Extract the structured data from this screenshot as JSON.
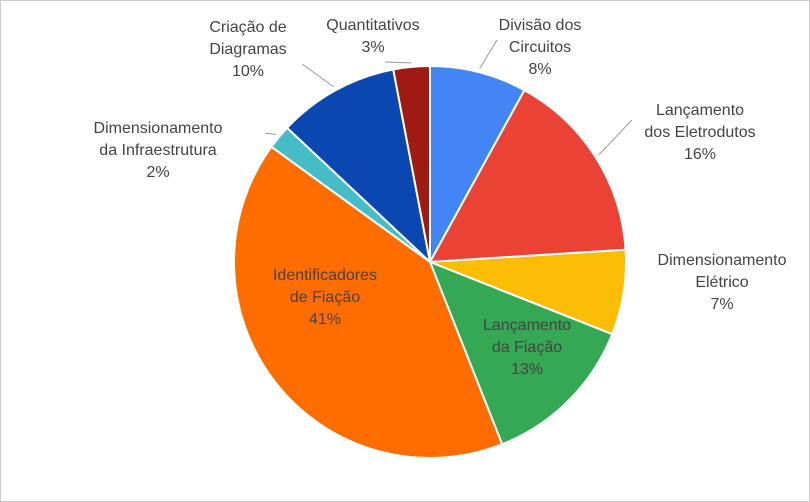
{
  "chart_data": {
    "type": "pie",
    "categories": [
      "Divisão dos\nCircuitos",
      "Lançamento\ndos Eletrodutos",
      "Dimensionamento\nElétrico",
      "Lançamento\nda Fiação",
      "Identificadores\nde Fiação",
      "Dimensionamento\nda Infraestrutura",
      "Criação de\nDiagramas",
      "Quantitativos"
    ],
    "values": [
      8,
      16,
      7,
      13,
      41,
      2,
      10,
      3
    ],
    "value_labels": [
      "8%",
      "16%",
      "7%",
      "13%",
      "41%",
      "2%",
      "10%",
      "3%"
    ],
    "colors": [
      "#4285f4",
      "#ea4335",
      "#fbbc04",
      "#34a853",
      "#ff6d01",
      "#46bdc6",
      "#0b47b0",
      "#9e1a12"
    ]
  }
}
